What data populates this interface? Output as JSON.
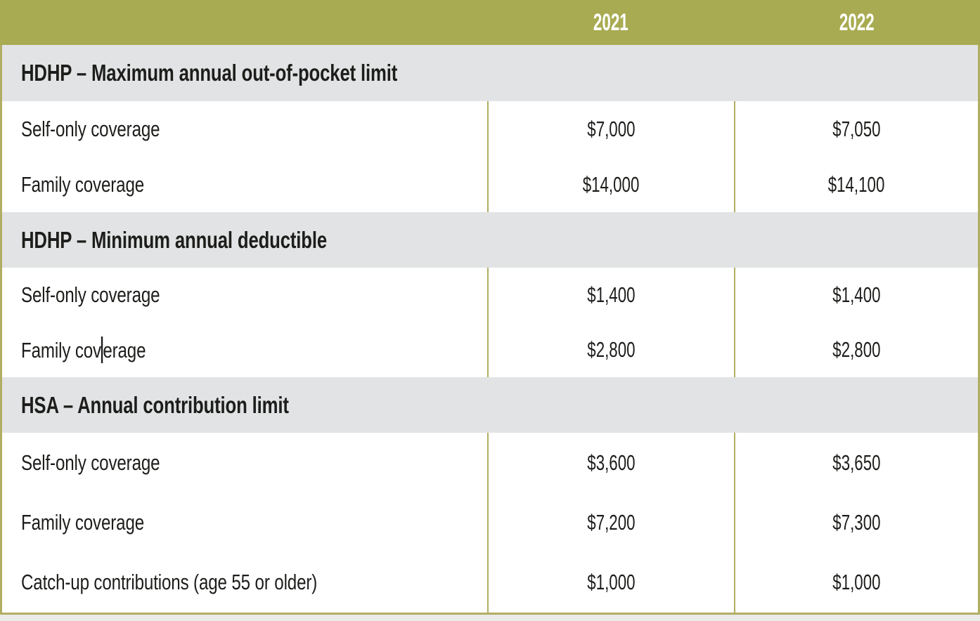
{
  "table": {
    "header": {
      "label_col": "",
      "years": [
        "2021",
        "2022"
      ]
    },
    "sections": [
      {
        "title": "HDHP – Maximum annual out-of-pocket limit",
        "rows": [
          {
            "label": "Self-only coverage",
            "values": [
              "$7,000",
              "$7,050"
            ]
          },
          {
            "label": "Family coverage",
            "values": [
              "$14,000",
              "$14,100"
            ]
          }
        ]
      },
      {
        "title": "HDHP – Minimum annual deductible",
        "rows": [
          {
            "label": "Self-only coverage",
            "values": [
              "$1,400",
              "$1,400"
            ]
          },
          {
            "label_before_caret": "Family cov",
            "label_after_caret": "erage",
            "values": [
              "$2,800",
              "$2,800"
            ]
          }
        ]
      },
      {
        "title": "HSA – Annual contribution limit",
        "rows": [
          {
            "label": "Self-only coverage",
            "values": [
              "$3,600",
              "$3,650"
            ]
          },
          {
            "label": "Family coverage",
            "values": [
              "$7,200",
              "$7,300"
            ]
          },
          {
            "label": "Catch-up contributions (age 55 or older)",
            "values": [
              "$1,000",
              "$1,000"
            ]
          }
        ]
      }
    ],
    "colors": {
      "header_bg": "#a8ab51",
      "section_bg": "#e2e3e4",
      "divider_olive": "#b1ae63",
      "text": "#1d1d1b",
      "year_text": "#ffffff"
    }
  },
  "chart_data": {
    "type": "table",
    "title": "HDHP and HSA limits, 2021 vs 2022",
    "columns": [
      "",
      "2021",
      "2022"
    ],
    "rows": [
      [
        "HDHP – Maximum annual out-of-pocket limit",
        "",
        ""
      ],
      [
        "Self-only coverage",
        "$7,000",
        "$7,050"
      ],
      [
        "Family coverage",
        "$14,000",
        "$14,100"
      ],
      [
        "HDHP – Minimum annual deductible",
        "",
        ""
      ],
      [
        "Self-only coverage",
        "$1,400",
        "$1,400"
      ],
      [
        "Family coverage",
        "$2,800",
        "$2,800"
      ],
      [
        "HSA – Annual contribution limit",
        "",
        ""
      ],
      [
        "Self-only coverage",
        "$3,600",
        "$3,650"
      ],
      [
        "Family coverage",
        "$7,200",
        "$7,300"
      ],
      [
        "Catch-up contributions (age 55 or older)",
        "$1,000",
        "$1,000"
      ]
    ]
  }
}
